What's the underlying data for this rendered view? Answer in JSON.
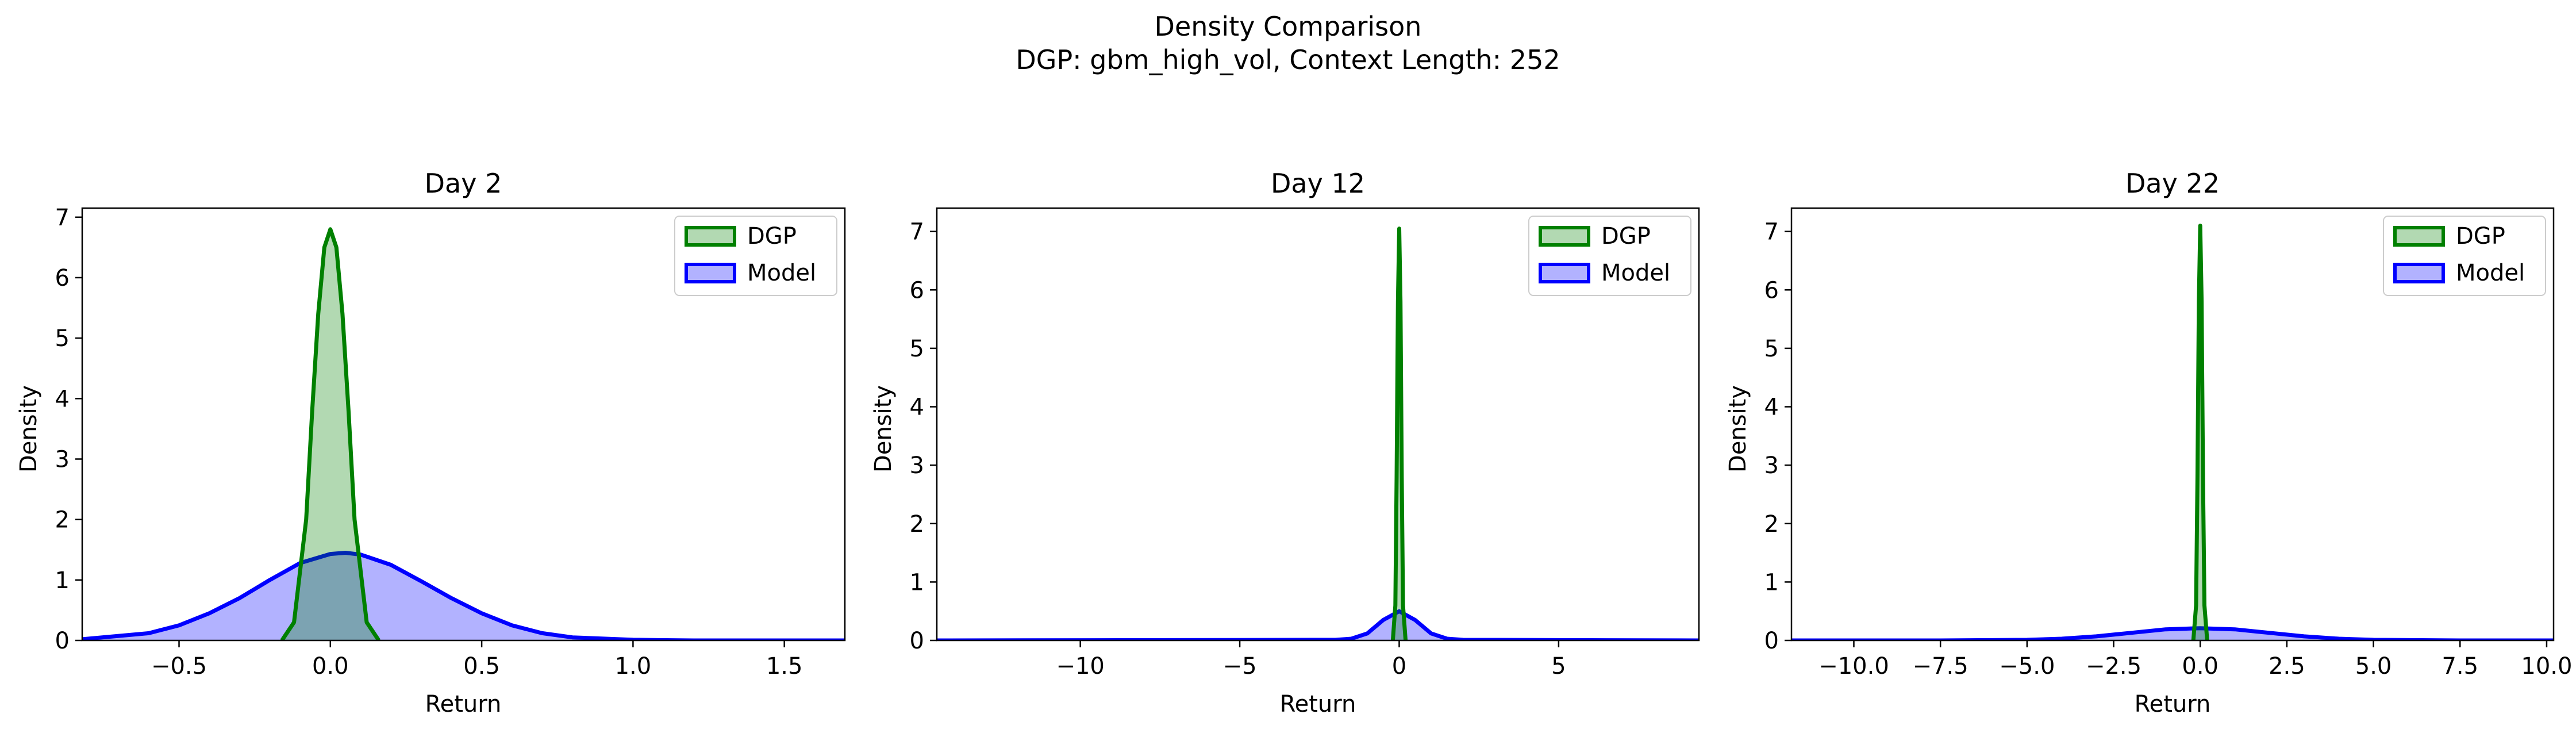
{
  "figure": {
    "title": "Density Comparison",
    "subtitle": "DGP: gbm_high_vol, Context Length: 252"
  },
  "colors": {
    "dgp": "#008000",
    "model": "#0000ff"
  },
  "chart_data": [
    {
      "type": "area",
      "title": "Day 2",
      "xlabel": "Return",
      "ylabel": "Density",
      "xlim": [
        -0.82,
        1.7
      ],
      "ylim": [
        0,
        7.15
      ],
      "xticks": [
        -0.5,
        0.0,
        0.5,
        1.0,
        1.5
      ],
      "xtick_labels": [
        "−0.5",
        "0.0",
        "0.5",
        "1.0",
        "1.5"
      ],
      "yticks": [
        0,
        1,
        2,
        3,
        4,
        5,
        6,
        7
      ],
      "ytick_labels": [
        "0",
        "1",
        "2",
        "3",
        "4",
        "5",
        "6",
        "7"
      ],
      "legend_position": "top-right",
      "series": [
        {
          "name": "DGP",
          "color": "#008000",
          "x": [
            -0.16,
            -0.12,
            -0.08,
            -0.06,
            -0.04,
            -0.02,
            0.0,
            0.02,
            0.04,
            0.06,
            0.08,
            0.12,
            0.16
          ],
          "y": [
            0.0,
            0.3,
            2.0,
            3.8,
            5.4,
            6.5,
            6.8,
            6.5,
            5.4,
            3.8,
            2.0,
            0.3,
            0.0
          ]
        },
        {
          "name": "Model",
          "color": "#0000ff",
          "x": [
            -0.82,
            -0.6,
            -0.5,
            -0.4,
            -0.3,
            -0.2,
            -0.1,
            0.0,
            0.05,
            0.1,
            0.2,
            0.3,
            0.4,
            0.5,
            0.6,
            0.7,
            0.8,
            1.0,
            1.2,
            1.7
          ],
          "y": [
            0.02,
            0.12,
            0.25,
            0.45,
            0.7,
            1.0,
            1.28,
            1.43,
            1.45,
            1.42,
            1.25,
            0.98,
            0.7,
            0.45,
            0.25,
            0.12,
            0.05,
            0.01,
            0.0,
            0.0
          ]
        }
      ]
    },
    {
      "type": "area",
      "title": "Day 12",
      "xlabel": "Return",
      "ylabel": "Density",
      "xlim": [
        -14.5,
        9.4
      ],
      "ylim": [
        0,
        7.4
      ],
      "xticks": [
        -10,
        -5,
        0,
        5
      ],
      "xtick_labels": [
        "−10",
        "−5",
        "0",
        "5"
      ],
      "yticks": [
        0,
        1,
        2,
        3,
        4,
        5,
        6,
        7
      ],
      "ytick_labels": [
        "0",
        "1",
        "2",
        "3",
        "4",
        "5",
        "6",
        "7"
      ],
      "legend_position": "top-right",
      "series": [
        {
          "name": "DGP",
          "color": "#008000",
          "x": [
            -0.2,
            -0.12,
            -0.08,
            -0.04,
            0.0,
            0.04,
            0.08,
            0.12,
            0.2
          ],
          "y": [
            0.0,
            0.6,
            2.8,
            5.8,
            7.05,
            5.8,
            2.8,
            0.6,
            0.0
          ]
        },
        {
          "name": "Model",
          "color": "#0000ff",
          "x": [
            -14.5,
            -2.0,
            -1.5,
            -1.0,
            -0.5,
            0.0,
            0.5,
            1.0,
            1.5,
            2.0,
            9.4
          ],
          "y": [
            0.0,
            0.01,
            0.03,
            0.12,
            0.35,
            0.5,
            0.35,
            0.12,
            0.03,
            0.01,
            0.0
          ]
        }
      ]
    },
    {
      "type": "area",
      "title": "Day 22",
      "xlabel": "Return",
      "ylabel": "Density",
      "xlim": [
        -11.8,
        10.2
      ],
      "ylim": [
        0,
        7.4
      ],
      "xticks": [
        -10.0,
        -7.5,
        -5.0,
        -2.5,
        0.0,
        2.5,
        5.0,
        7.5,
        10.0
      ],
      "xtick_labels": [
        "−10.0",
        "−7.5",
        "−5.0",
        "−2.5",
        "0.0",
        "2.5",
        "5.0",
        "7.5",
        "10.0"
      ],
      "yticks": [
        0,
        1,
        2,
        3,
        4,
        5,
        6,
        7
      ],
      "ytick_labels": [
        "0",
        "1",
        "2",
        "3",
        "4",
        "5",
        "6",
        "7"
      ],
      "legend_position": "top-right",
      "series": [
        {
          "name": "DGP",
          "color": "#008000",
          "x": [
            -0.2,
            -0.12,
            -0.08,
            -0.04,
            0.0,
            0.04,
            0.08,
            0.12,
            0.2
          ],
          "y": [
            0.0,
            0.6,
            2.8,
            5.8,
            7.1,
            5.8,
            2.8,
            0.6,
            0.0
          ]
        },
        {
          "name": "Model",
          "color": "#0000ff",
          "x": [
            -11.8,
            -7.5,
            -5.0,
            -4.0,
            -3.0,
            -2.0,
            -1.0,
            0.0,
            1.0,
            2.0,
            3.0,
            4.0,
            5.0,
            7.5,
            10.2
          ],
          "y": [
            0.0,
            0.0,
            0.01,
            0.03,
            0.07,
            0.13,
            0.19,
            0.21,
            0.19,
            0.13,
            0.07,
            0.03,
            0.01,
            0.0,
            0.0
          ]
        }
      ]
    }
  ]
}
